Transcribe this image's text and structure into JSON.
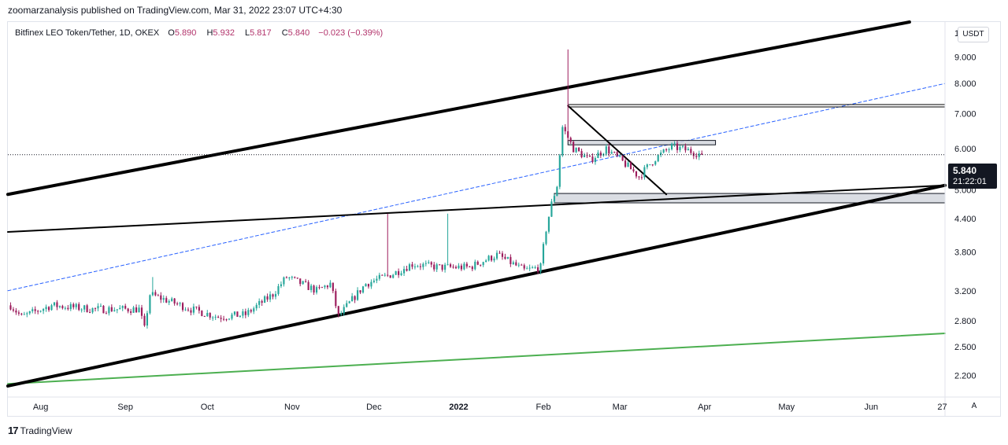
{
  "header": {
    "published": "zoomarzanalysis published on TradingView.com, Mar 31, 2022 23:07 UTC+4:30"
  },
  "legend": {
    "symbol": "Bitfinex LEO Token/Tether, 1D, OKEX",
    "open_label": "O",
    "open": "5.890",
    "high_label": "H",
    "high": "5.932",
    "low_label": "L",
    "low": "5.817",
    "close_label": "C",
    "close": "5.840",
    "change": "−0.023 (−0.39%)"
  },
  "price_scale": {
    "currency": "USDT",
    "last_price": "5.840",
    "countdown": "21:22:01",
    "auto_label": "A"
  },
  "footer": {
    "brand": "TradingView",
    "logo_icon": "tradingview-logo-icon"
  },
  "colors": {
    "up": "#26a69a",
    "down": "#9c1c5c",
    "trendline": "#000000",
    "ma_line": "#4caf50",
    "dashed_line": "#2962ff",
    "zone_fill": "#d1d4dc"
  },
  "chart_data": {
    "type": "candlestick",
    "y_scale": "log",
    "ylim": [
      2.0,
      10.5
    ],
    "y_ticks": [
      "2.200",
      "2.500",
      "2.800",
      "3.200",
      "3.800",
      "4.400",
      "5.000",
      "6.000",
      "7.000",
      "8.000",
      "9.000",
      "1"
    ],
    "y_tick_values": [
      2.2,
      2.5,
      2.8,
      3.2,
      3.8,
      4.4,
      5.0,
      6.0,
      7.0,
      8.0,
      9.0,
      10.0
    ],
    "x_labels": [
      "Aug",
      "Sep",
      "Oct",
      "Nov",
      "Dec",
      "2022",
      "Feb",
      "Mar",
      "Apr",
      "May",
      "Jun",
      "27"
    ],
    "x_label_dates": [
      "2021-08-01",
      "2021-09-01",
      "2021-10-01",
      "2021-11-01",
      "2021-12-01",
      "2022-01-01",
      "2022-02-01",
      "2022-03-01",
      "2022-04-01",
      "2022-05-01",
      "2022-06-01",
      "2022-06-27"
    ],
    "xlim": [
      "2021-07-20",
      "2022-06-28"
    ],
    "series_close_anchors": [
      [
        "2021-07-21",
        3.0
      ],
      [
        "2021-07-25",
        2.85
      ],
      [
        "2021-08-05",
        3.0
      ],
      [
        "2021-08-20",
        2.95
      ],
      [
        "2021-09-06",
        2.95
      ],
      [
        "2021-09-08",
        2.7
      ],
      [
        "2021-09-10",
        3.15
      ],
      [
        "2021-09-25",
        2.95
      ],
      [
        "2021-10-05",
        2.85
      ],
      [
        "2021-10-15",
        2.88
      ],
      [
        "2021-10-25",
        3.15
      ],
      [
        "2021-10-30",
        3.4
      ],
      [
        "2021-11-10",
        3.2
      ],
      [
        "2021-11-15",
        3.3
      ],
      [
        "2021-11-18",
        2.85
      ],
      [
        "2021-11-28",
        3.3
      ],
      [
        "2021-12-08",
        3.45
      ],
      [
        "2021-12-15",
        3.6
      ],
      [
        "2021-12-25",
        3.55
      ],
      [
        "2022-01-05",
        3.55
      ],
      [
        "2022-01-15",
        3.75
      ],
      [
        "2022-01-25",
        3.5
      ],
      [
        "2022-01-31",
        3.55
      ],
      [
        "2022-02-02",
        4.2
      ],
      [
        "2022-02-04",
        4.7
      ],
      [
        "2022-02-06",
        5.1
      ],
      [
        "2022-02-08",
        6.6
      ],
      [
        "2022-02-12",
        6.0
      ],
      [
        "2022-02-18",
        5.7
      ],
      [
        "2022-02-24",
        6.0
      ],
      [
        "2022-03-03",
        5.6
      ],
      [
        "2022-03-08",
        5.3
      ],
      [
        "2022-03-14",
        5.75
      ],
      [
        "2022-03-20",
        6.05
      ],
      [
        "2022-03-26",
        5.95
      ],
      [
        "2022-03-31",
        5.84
      ]
    ],
    "notable_wicks": [
      [
        "2022-02-10",
        9.3
      ],
      [
        "2021-09-11",
        3.4
      ],
      [
        "2021-12-06",
        4.5
      ],
      [
        "2021-12-28",
        4.5
      ]
    ],
    "last_close": 5.84,
    "annotations": {
      "rising_channel_upper": [
        [
          "2021-07-20",
          4.9
        ],
        [
          "2022-06-15",
          10.5
        ]
      ],
      "rising_channel_lower": [
        [
          "2021-07-20",
          2.1
        ],
        [
          "2022-06-28",
          5.1
        ]
      ],
      "long_trendline": [
        [
          "2021-07-20",
          4.15
        ],
        [
          "2022-06-28",
          5.1
        ]
      ],
      "dashed_trend": [
        [
          "2021-07-20",
          3.2
        ],
        [
          "2022-06-28",
          8.0
        ]
      ],
      "green_ma": [
        [
          "2021-07-20",
          2.12
        ],
        [
          "2022-06-28",
          2.65
        ]
      ],
      "falling_wedge_line": [
        [
          "2022-02-10",
          7.25
        ],
        [
          "2022-03-18",
          4.9
        ]
      ],
      "resistance_double_line": {
        "from": "2022-02-10",
        "to": "2022-06-28",
        "value": 7.25
      },
      "zone_top": {
        "from": "2022-02-10",
        "to": "2022-04-05",
        "values": [
          6.1,
          6.22
        ]
      },
      "zone_bottom": {
        "from": "2022-02-05",
        "to": "2022-06-28",
        "values": [
          4.72,
          4.92
        ]
      }
    }
  }
}
